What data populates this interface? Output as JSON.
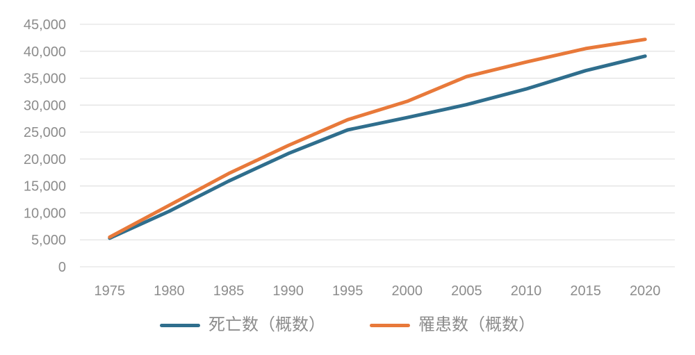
{
  "chart_data": {
    "type": "line",
    "categories": [
      "1975",
      "1980",
      "1985",
      "1990",
      "1995",
      "2000",
      "2005",
      "2010",
      "2015",
      "2020"
    ],
    "series": [
      {
        "key": "deaths",
        "name": "死亡数（概数）",
        "color": "#2f6e8d",
        "values": [
          5300,
          10300,
          15900,
          21000,
          25400,
          27700,
          30100,
          33000,
          36400,
          39100
        ]
      },
      {
        "key": "incidence",
        "name": "罹患数（概数）",
        "color": "#e8793a",
        "values": [
          5500,
          11400,
          17300,
          22500,
          27300,
          30700,
          35300,
          38000,
          40500,
          42200
        ]
      }
    ],
    "title": "",
    "xlabel": "",
    "ylabel": "",
    "ylim": [
      0,
      45000
    ],
    "y_tick_step": 5000,
    "y_tick_labels": [
      "0",
      "5,000",
      "10,000",
      "15,000",
      "20,000",
      "25,000",
      "30,000",
      "35,000",
      "40,000",
      "45,000"
    ],
    "grid": "horizontal-only",
    "grid_color": "#e3e3e3",
    "axis_label_color": "#8c8c8c",
    "legend_position": "bottom-center"
  }
}
